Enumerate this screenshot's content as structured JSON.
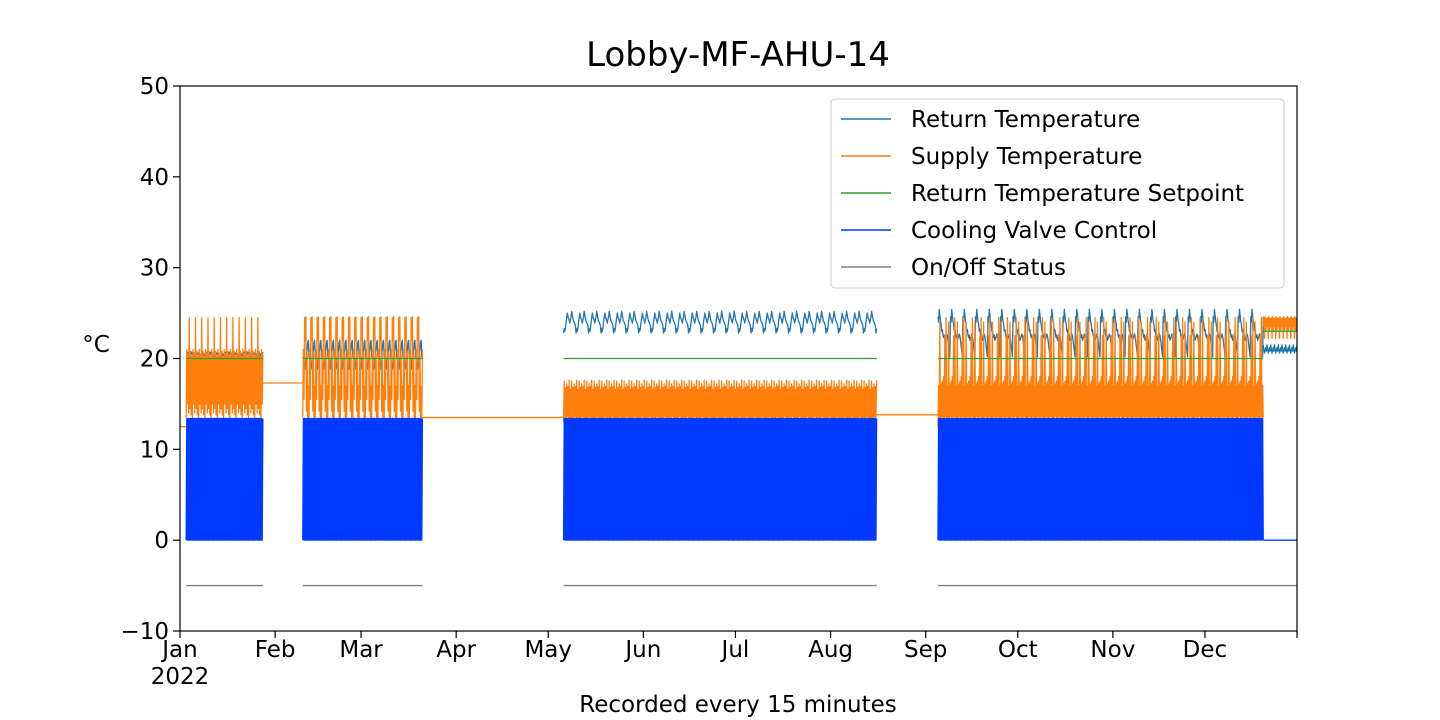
{
  "chart_data": {
    "type": "line",
    "title": "Lobby-MF-AHU-14",
    "xlabel": "Recorded every 15 minutes",
    "ylabel": "°C",
    "year_label": "2022",
    "xlim": [
      "2022-01-01",
      "2022-12-31"
    ],
    "ylim": [
      -10,
      50
    ],
    "y_ticks": [
      -10,
      0,
      10,
      20,
      30,
      40,
      50
    ],
    "y_tick_labels": [
      "−10",
      "0",
      "10",
      "20",
      "30",
      "40",
      "50"
    ],
    "x_ticks": [
      {
        "date": "2022-01-01",
        "label": "Jan"
      },
      {
        "date": "2022-02-01",
        "label": "Feb"
      },
      {
        "date": "2022-03-01",
        "label": "Mar"
      },
      {
        "date": "2022-04-01",
        "label": "Apr"
      },
      {
        "date": "2022-05-01",
        "label": "May"
      },
      {
        "date": "2022-06-01",
        "label": "Jun"
      },
      {
        "date": "2022-07-01",
        "label": "Jul"
      },
      {
        "date": "2022-08-01",
        "label": "Aug"
      },
      {
        "date": "2022-09-01",
        "label": "Sep"
      },
      {
        "date": "2022-10-01",
        "label": "Oct"
      },
      {
        "date": "2022-11-01",
        "label": "Nov"
      },
      {
        "date": "2022-12-01",
        "label": "Dec"
      }
    ],
    "grid": false,
    "legend_position": "top-right",
    "series": [
      {
        "name": "Return Temperature",
        "color": "#1f77b4",
        "segments": [
          {
            "start": "2022-01-03",
            "end": "2022-01-28",
            "y": [
              20.5,
              20.6,
              20.4,
              20.7,
              20.5,
              20.3
            ]
          },
          {
            "start": "2022-02-10",
            "end": "2022-03-21",
            "y": [
              20.2,
              20.0,
              19.5,
              18.8,
              19.2,
              20.0,
              20.5,
              21.0,
              21.8,
              22.0
            ]
          },
          {
            "start": "2022-05-06",
            "end": "2022-08-16",
            "y": [
              22.8,
              23.3,
              23.0,
              23.4,
              24.0,
              24.5,
              25.0,
              24.6,
              24.4,
              24.2,
              23.9,
              24.3,
              24.6,
              25.2,
              24.8,
              24.4,
              24.1,
              24.0,
              23.8,
              23.6
            ]
          },
          {
            "start": "2022-09-05",
            "end": "2022-12-20",
            "y": [
              24.6,
              24.0,
              25.4,
              24.8,
              24.1,
              23.8,
              23.0,
              23.2,
              22.6,
              22.3,
              22.6,
              22.0,
              22.2,
              22.4,
              22.7,
              22.5,
              22.0,
              21.4,
              20.8,
              20.2
            ]
          },
          {
            "start": "2022-12-20",
            "end": "2022-12-31",
            "y": [
              21.5,
              21.0,
              20.6,
              20.9,
              21.2,
              20.8
            ]
          }
        ]
      },
      {
        "name": "Supply Temperature",
        "color": "#ff7f0e",
        "segments": [
          {
            "start": "2022-01-01",
            "end": "2022-01-03",
            "y": [
              12.5,
              12.5
            ]
          },
          {
            "start": "2022-01-03",
            "end": "2022-01-28",
            "y": [
              13.5,
              21.0,
              15.0,
              20.5,
              14.0,
              24.5,
              14.5,
              20.8,
              13.8,
              20.2
            ]
          },
          {
            "start": "2022-01-28",
            "end": "2022-02-10",
            "y": [
              17.3,
              17.3
            ]
          },
          {
            "start": "2022-02-10",
            "end": "2022-03-21",
            "y": [
              13.5,
              21.0,
              15.5,
              24.5,
              22.0,
              24.6,
              14.2,
              20.5,
              13.5,
              17.0
            ]
          },
          {
            "start": "2022-03-21",
            "end": "2022-05-06",
            "y": [
              13.5,
              13.5
            ]
          },
          {
            "start": "2022-05-06",
            "end": "2022-08-16",
            "y": [
              13.0,
              17.5,
              13.5,
              16.8,
              13.2,
              17.2,
              13.6,
              16.9,
              13.4,
              17.6,
              13.1,
              16.6
            ]
          },
          {
            "start": "2022-08-16",
            "end": "2022-09-05",
            "y": [
              13.8,
              13.8
            ]
          },
          {
            "start": "2022-09-05",
            "end": "2022-12-20",
            "y": [
              12.5,
              17.0,
              13.5,
              24.0,
              13.2,
              17.2,
              13.6,
              17.5,
              13.3,
              18.0,
              13.5,
              22.5,
              13.6,
              24.5
            ]
          },
          {
            "start": "2022-12-20",
            "end": "2022-12-31",
            "y": [
              23.5,
              24.5,
              22.2,
              24.6,
              23.0,
              24.4
            ]
          }
        ]
      },
      {
        "name": "Return Temperature Setpoint",
        "color": "#2ca02c",
        "segments": [
          {
            "start": "2022-01-03",
            "end": "2022-01-28",
            "y": [
              20,
              20
            ]
          },
          {
            "start": "2022-02-10",
            "end": "2022-03-21",
            "y": [
              20,
              20
            ]
          },
          {
            "start": "2022-05-06",
            "end": "2022-08-16",
            "y": [
              20,
              20
            ]
          },
          {
            "start": "2022-09-05",
            "end": "2022-12-20",
            "y": [
              20,
              20
            ]
          },
          {
            "start": "2022-12-20",
            "end": "2022-12-31",
            "y": [
              23,
              23
            ]
          }
        ]
      },
      {
        "name": "Cooling Valve Control",
        "color": "#0039ff",
        "segments": [
          {
            "start": "2022-01-03",
            "end": "2022-01-28",
            "y": [
              0,
              13.4
            ]
          },
          {
            "start": "2022-02-10",
            "end": "2022-03-21",
            "y": [
              0,
              13.4
            ]
          },
          {
            "start": "2022-05-06",
            "end": "2022-08-16",
            "y": [
              0,
              13.4
            ]
          },
          {
            "start": "2022-09-05",
            "end": "2022-12-20",
            "y": [
              0,
              13.4
            ]
          },
          {
            "start": "2022-12-20",
            "end": "2022-12-31",
            "y": [
              0,
              0
            ]
          }
        ]
      },
      {
        "name": "On/Off Status",
        "color": "#808080",
        "segments": [
          {
            "start": "2022-01-03",
            "end": "2022-01-28",
            "y": [
              -5,
              -5
            ]
          },
          {
            "start": "2022-02-10",
            "end": "2022-03-21",
            "y": [
              -5,
              -5
            ]
          },
          {
            "start": "2022-05-06",
            "end": "2022-08-16",
            "y": [
              -5,
              -5
            ]
          },
          {
            "start": "2022-09-05",
            "end": "2022-12-31",
            "y": [
              -5,
              -5
            ]
          }
        ]
      }
    ]
  }
}
